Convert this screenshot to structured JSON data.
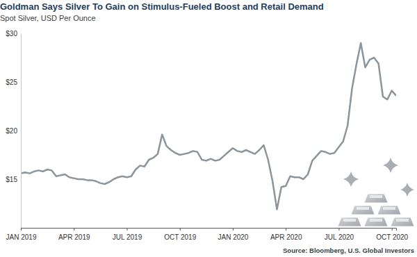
{
  "chart_data": {
    "type": "line",
    "title": "Goldman Says Silver To Gain on Stimulus-Fueled Boost and Retail Demand",
    "subtitle": "Spot Silver, USD Per Ounce",
    "source": "Source: Bloomberg, U.S. Global Investors",
    "color": "#8c949c",
    "grid": false,
    "xlim": [
      0,
      21.25
    ],
    "xticks": [
      {
        "value": 0,
        "label": "JAN 2019"
      },
      {
        "value": 3,
        "label": "APR 2019"
      },
      {
        "value": 6,
        "label": "JUL 2019"
      },
      {
        "value": 9,
        "label": "OCT 2019"
      },
      {
        "value": 12,
        "label": "JAN 2020"
      },
      {
        "value": 15,
        "label": "APR 2020"
      },
      {
        "value": 18,
        "label": "JUL 2020"
      },
      {
        "value": 21,
        "label": "OCT 2020"
      }
    ],
    "ylim": [
      10,
      30
    ],
    "yticks": [
      {
        "value": 15,
        "label": "$15"
      },
      {
        "value": 20,
        "label": "$20"
      },
      {
        "value": 25,
        "label": "$25"
      },
      {
        "value": 30,
        "label": "$30"
      }
    ],
    "x": [
      0,
      0.25,
      0.5,
      0.75,
      1,
      1.25,
      1.5,
      1.75,
      2,
      2.25,
      2.5,
      2.75,
      3,
      3.25,
      3.5,
      3.75,
      4,
      4.25,
      4.5,
      4.75,
      5,
      5.25,
      5.5,
      5.75,
      6,
      6.25,
      6.5,
      6.75,
      7,
      7.25,
      7.5,
      7.75,
      8,
      8.25,
      8.5,
      8.75,
      9,
      9.25,
      9.5,
      9.75,
      10,
      10.25,
      10.5,
      10.75,
      11,
      11.25,
      11.5,
      11.75,
      12,
      12.25,
      12.5,
      12.75,
      13,
      13.25,
      13.5,
      13.75,
      14,
      14.25,
      14.5,
      14.75,
      15,
      15.25,
      15.5,
      15.75,
      16,
      16.25,
      16.5,
      16.75,
      17,
      17.25,
      17.5,
      17.75,
      18,
      18.25,
      18.5,
      18.75,
      19,
      19.25,
      19.5,
      19.75,
      20,
      20.25,
      20.5,
      20.75,
      21,
      21.25
    ],
    "values": [
      15.6,
      15.7,
      15.6,
      15.8,
      15.9,
      15.8,
      16.0,
      15.9,
      15.3,
      15.4,
      15.5,
      15.2,
      15.1,
      15.0,
      15.0,
      14.9,
      14.9,
      14.8,
      14.6,
      14.5,
      14.7,
      15.0,
      15.2,
      15.3,
      15.2,
      15.3,
      16.0,
      16.4,
      16.3,
      17.0,
      17.2,
      17.6,
      19.6,
      18.4,
      18.0,
      17.7,
      17.5,
      17.6,
      17.7,
      17.9,
      17.8,
      17.0,
      16.9,
      17.1,
      16.9,
      17.0,
      17.4,
      17.8,
      18.2,
      17.9,
      17.8,
      18.0,
      17.8,
      17.6,
      18.0,
      18.5,
      17.0,
      14.8,
      11.9,
      14.2,
      14.3,
      15.3,
      15.2,
      15.2,
      15.0,
      15.5,
      16.9,
      17.4,
      17.9,
      17.8,
      17.6,
      17.7,
      18.3,
      18.9,
      20.5,
      24.3,
      26.8,
      29.0,
      26.5,
      27.3,
      27.5,
      26.9,
      23.5,
      23.2,
      24.1,
      23.6
    ]
  }
}
